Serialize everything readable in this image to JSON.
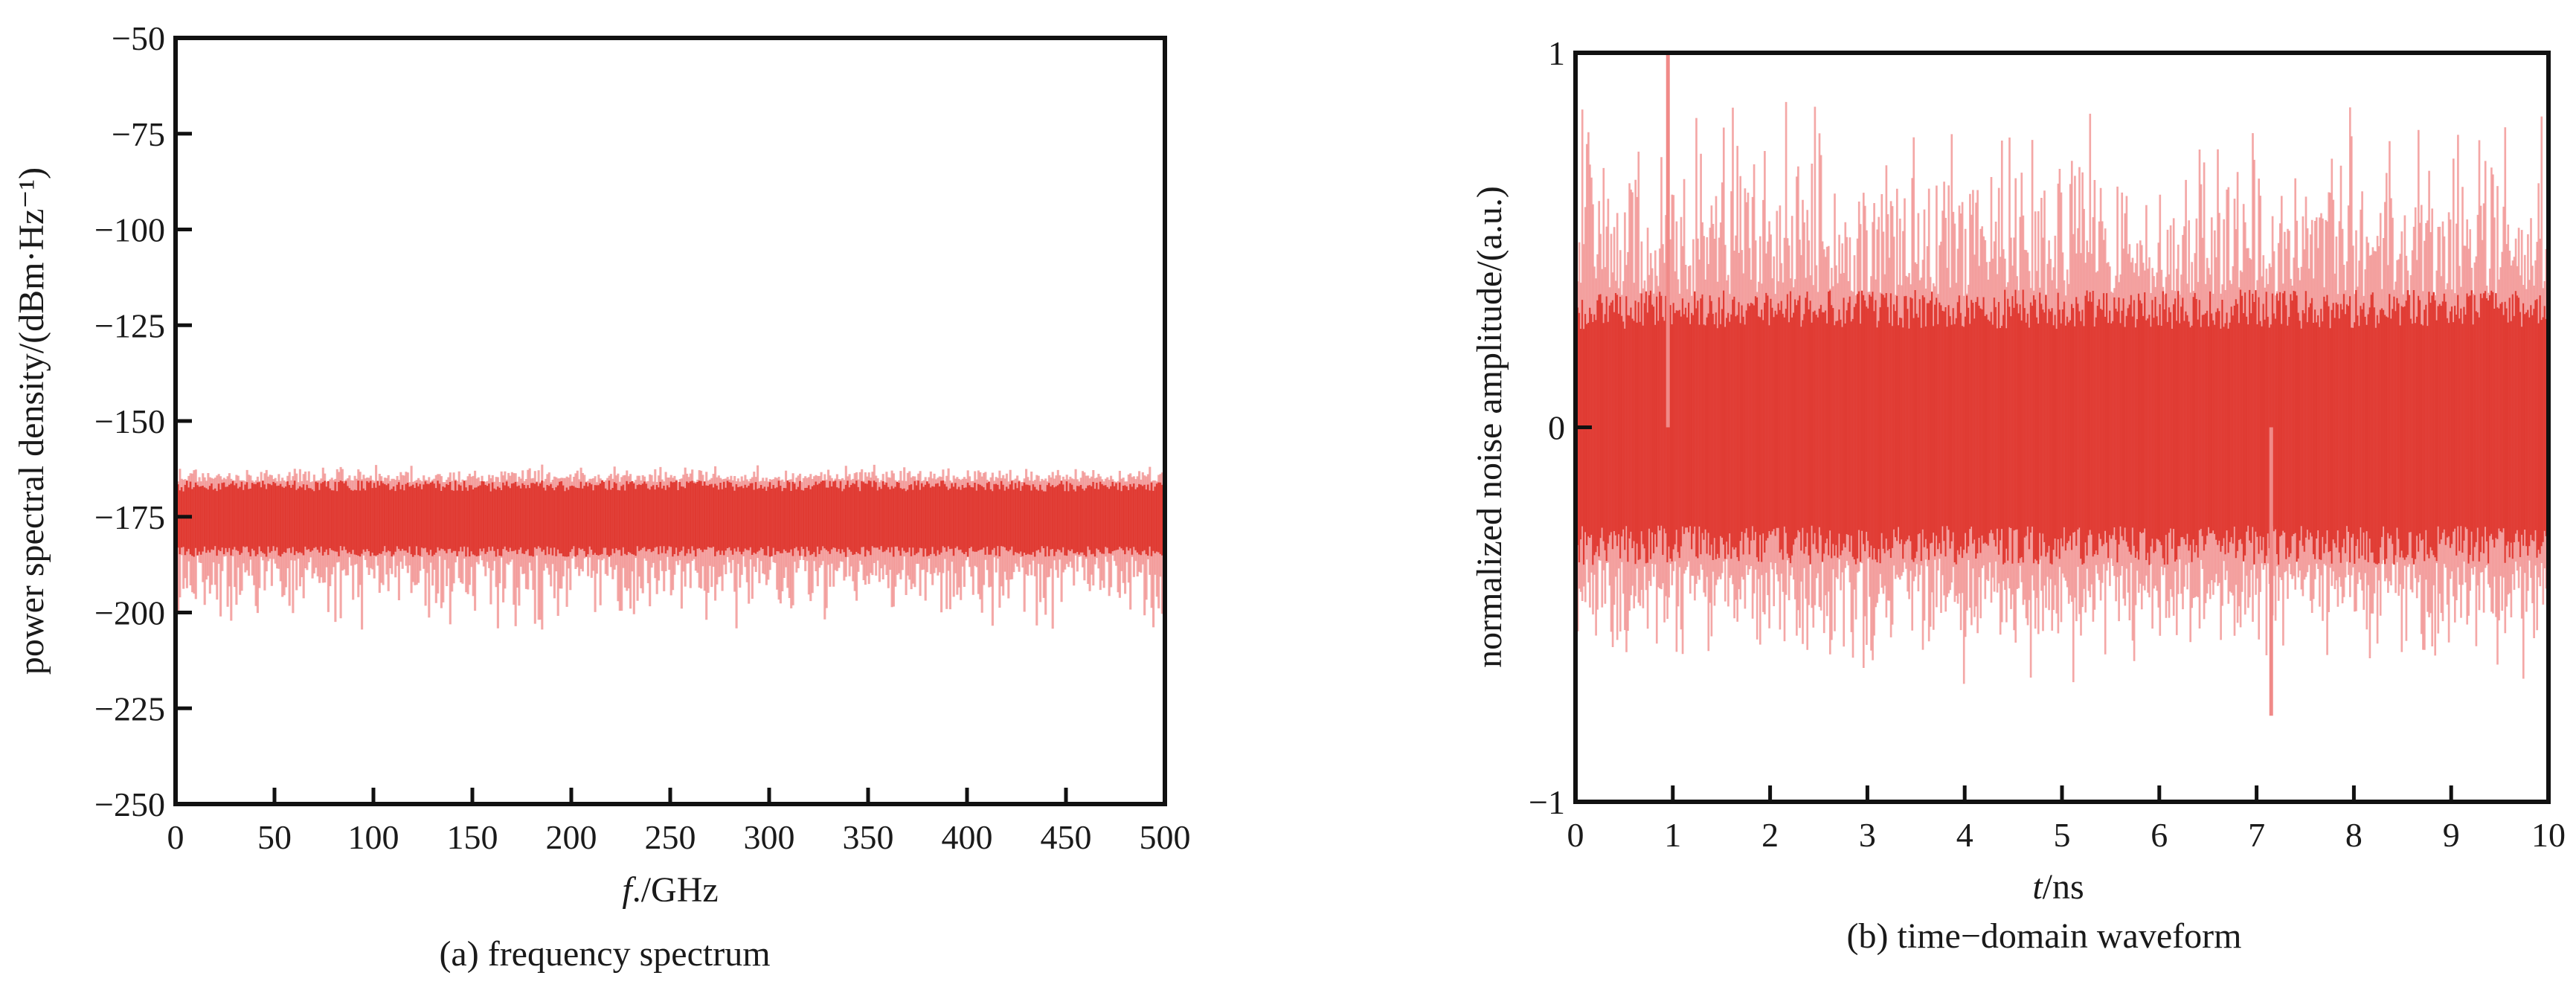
{
  "colors": {
    "noise": "#e03a32",
    "noise_light": "#f08a88",
    "axis": "#111111"
  },
  "chart_data": [
    {
      "type": "area",
      "caption": "(a) frequency spectrum",
      "xlabel_italic": "f",
      "xlabel_unit": "./GHz",
      "ylabel": "power spectral density/(dBm·Hz⁻¹)",
      "xlim": [
        0,
        500
      ],
      "ylim": [
        -250,
        -50
      ],
      "xticks": [
        "0",
        "50",
        "100",
        "150",
        "200",
        "250",
        "300",
        "350",
        "400",
        "450",
        "500"
      ],
      "yticks": [
        "−50",
        "−75",
        "−100",
        "−125",
        "−150",
        "−175",
        "−200",
        "−225",
        "−250"
      ],
      "series": [
        {
          "description": "broadband white-noise spectrum",
          "band_center": -175,
          "band_core_range": [
            -185,
            -166
          ],
          "envelope_range": [
            -210,
            -160
          ],
          "peak_max": -160,
          "dip_min": -210
        }
      ]
    },
    {
      "type": "area",
      "caption": "(b) time−domain waveform",
      "xlabel_italic": "t",
      "xlabel_unit": "/ns",
      "ylabel": "normalized noise amplitude/(a.u.)",
      "xlim": [
        0,
        10
      ],
      "ylim": [
        -1,
        1
      ],
      "xticks": [
        "0",
        "1",
        "2",
        "3",
        "4",
        "5",
        "6",
        "7",
        "8",
        "9",
        "10"
      ],
      "yticks": [
        "1",
        "0",
        "−1"
      ],
      "series": [
        {
          "description": "random noise waveform",
          "band_center": 0,
          "band_core_range": [
            -0.35,
            0.35
          ],
          "envelope_range": [
            -0.77,
            1.0
          ],
          "peak_max": 1.0,
          "peak_time": 0.95,
          "dip_min": -0.77,
          "dip_time": 7.15
        }
      ]
    }
  ]
}
